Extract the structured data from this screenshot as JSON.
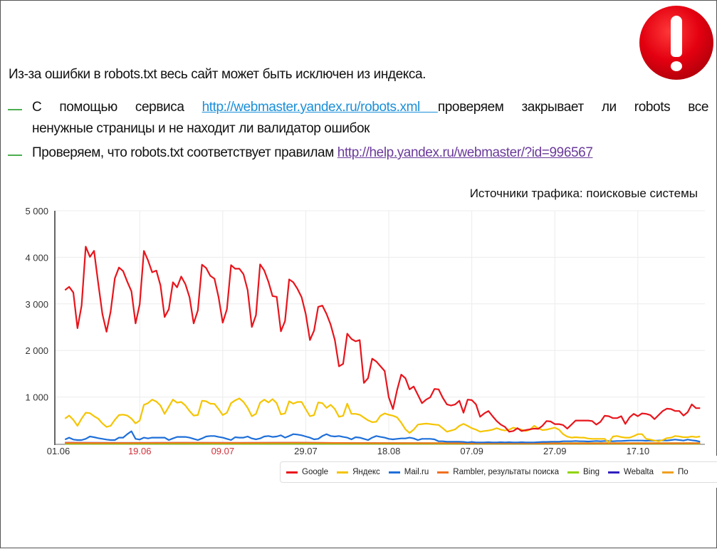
{
  "slide": {
    "headline": "Из-за ошибки в robots.txt весь сайт может быть исключен из индекса.",
    "bullet1": {
      "prefix": "С помощью сервиса",
      "link": "http://webmaster.yandex.ru/robots.xml ",
      "suffix_line1": "проверяем закрывает ли robots все",
      "line2": "ненужные страницы и не находит ли валидатор ошибок"
    },
    "bullet2": {
      "prefix": "Проверяем, что robots.txt соответствует правилам",
      "link": "http://help.yandex.ru/webmaster/?id=996567"
    },
    "warning_icon": "exclamation-circle-icon"
  },
  "chart_data": {
    "type": "line",
    "title": "Источники трафика: поисковые системы",
    "xlabel": "",
    "ylabel": "",
    "ylim": [
      0,
      5000
    ],
    "y_ticks": [
      1000,
      2000,
      3000,
      4000,
      5000
    ],
    "y_tick_labels": [
      "1 000",
      "2 000",
      "3 000",
      "4 000",
      "5 000"
    ],
    "x_ticks": [
      {
        "label": "01.06",
        "color": "#333333"
      },
      {
        "label": "19.06",
        "color": "#d0303a"
      },
      {
        "label": "09.07",
        "color": "#d0303a"
      },
      {
        "label": "29.07",
        "color": "#333333"
      },
      {
        "label": "18.08",
        "color": "#333333"
      },
      {
        "label": "07.09",
        "color": "#333333"
      },
      {
        "label": "27.09",
        "color": "#333333"
      },
      {
        "label": "17.10",
        "color": "#333333"
      }
    ],
    "grid": true,
    "legend_position": "bottom",
    "x": [
      "01.06",
      "02.06",
      "03.06",
      "04.06",
      "05.06",
      "06.06",
      "07.06",
      "08.06",
      "09.06",
      "10.06",
      "11.06",
      "12.06",
      "13.06",
      "14.06",
      "15.06",
      "16.06",
      "17.06",
      "18.06",
      "19.06",
      "20.06",
      "21.06",
      "22.06",
      "23.06",
      "24.06",
      "25.06",
      "26.06",
      "27.06",
      "28.06",
      "29.06",
      "30.06",
      "01.07",
      "02.07",
      "03.07",
      "04.07",
      "05.07",
      "06.07",
      "07.07",
      "08.07",
      "09.07",
      "10.07",
      "11.07",
      "12.07",
      "13.07",
      "14.07",
      "15.07",
      "16.07",
      "17.07",
      "18.07",
      "19.07",
      "20.07",
      "21.07",
      "22.07",
      "23.07",
      "24.07",
      "25.07",
      "26.07",
      "27.07",
      "28.07",
      "29.07",
      "30.07",
      "31.07",
      "01.08",
      "02.08",
      "03.08",
      "04.08",
      "05.08",
      "06.08",
      "07.08",
      "08.08",
      "09.08",
      "10.08",
      "11.08",
      "12.08",
      "13.08",
      "14.08",
      "15.08",
      "16.08",
      "17.08",
      "18.08",
      "19.08",
      "20.08",
      "21.08",
      "22.08",
      "23.08",
      "24.08",
      "25.08",
      "26.08",
      "27.08",
      "28.08",
      "29.08",
      "30.08",
      "31.08",
      "01.09",
      "02.09",
      "03.09",
      "04.09",
      "05.09",
      "06.09",
      "07.09",
      "08.09",
      "09.09",
      "10.09",
      "11.09",
      "12.09",
      "13.09",
      "14.09",
      "15.09",
      "16.09",
      "17.09",
      "18.09",
      "19.09",
      "20.09",
      "21.09",
      "22.09",
      "23.09",
      "24.09",
      "25.09",
      "26.09",
      "27.09",
      "28.09",
      "29.09",
      "30.09",
      "01.10",
      "02.10",
      "03.10",
      "04.10",
      "05.10",
      "06.10",
      "07.10",
      "08.10",
      "09.10",
      "10.10",
      "11.10",
      "12.10",
      "13.10",
      "14.10",
      "15.10",
      "16.10",
      "17.10",
      "18.10",
      "19.10",
      "20.10",
      "21.10",
      "22.10",
      "23.10",
      "24.10",
      "25.10",
      "26.10",
      "27.10",
      "28.10",
      "29.10",
      "30.10",
      "31.10",
      "01.11"
    ],
    "series": [
      {
        "name": "Google",
        "color": "#e8141b",
        "values": [
          3296,
          3367,
          3245,
          2478,
          2964,
          4231,
          4011,
          4139,
          3449,
          2785,
          2402,
          2836,
          3551,
          3781,
          3705,
          3475,
          3270,
          2581,
          2989,
          4139,
          3935,
          3679,
          3715,
          3398,
          2719,
          2887,
          3465,
          3357,
          3587,
          3424,
          3143,
          2581,
          2862,
          3843,
          3771,
          3603,
          3541,
          3143,
          2596,
          2887,
          3833,
          3756,
          3756,
          3638,
          3296,
          2504,
          2759,
          3848,
          3720,
          3475,
          3168,
          3153,
          2412,
          2632,
          3526,
          3465,
          3322,
          3143,
          2785,
          2223,
          2427,
          2938,
          2964,
          2785,
          2555,
          2223,
          1661,
          1712,
          2361,
          2248,
          2197,
          2223,
          1303,
          1405,
          1824,
          1763,
          1661,
          1559,
          996,
          741,
          1150,
          1482,
          1405,
          1165,
          1226,
          1048,
          869,
          945,
          996,
          1175,
          1165,
          986,
          843,
          818,
          843,
          920,
          664,
          945,
          935,
          843,
          577,
          649,
          700,
          588,
          485,
          409,
          358,
          256,
          271,
          332,
          271,
          291,
          307,
          322,
          317,
          383,
          485,
          475,
          419,
          419,
          399,
          322,
          409,
          496,
          496,
          496,
          496,
          485,
          409,
          470,
          598,
          588,
          547,
          547,
          588,
          424,
          562,
          639,
          588,
          649,
          639,
          613,
          526,
          613,
          700,
          751,
          741,
          700,
          700,
          603,
          675,
          843,
          761,
          761
        ]
      },
      {
        "name": "Яндекс",
        "color": "#f5c400",
        "values": [
          537,
          603,
          511,
          383,
          537,
          664,
          654,
          588,
          537,
          434,
          358,
          383,
          511,
          613,
          623,
          603,
          537,
          434,
          496,
          833,
          869,
          945,
          904,
          818,
          639,
          792,
          945,
          879,
          894,
          818,
          700,
          603,
          613,
          920,
          910,
          858,
          853,
          741,
          613,
          664,
          869,
          930,
          971,
          894,
          767,
          588,
          639,
          879,
          945,
          884,
          956,
          869,
          629,
          649,
          910,
          858,
          894,
          894,
          741,
          588,
          613,
          884,
          869,
          767,
          833,
          741,
          577,
          598,
          858,
          639,
          639,
          620,
          560,
          500,
          460,
          470,
          600,
          649,
          620,
          600,
          562,
          450,
          307,
          230,
          300,
          409,
          420,
          430,
          420,
          409,
          400,
          330,
          256,
          280,
          307,
          380,
          424,
          380,
          332,
          300,
          256,
          270,
          281,
          300,
          332,
          300,
          281,
          300,
          342,
          320,
          300,
          271,
          300,
          383,
          330,
          291,
          300,
          322,
          342,
          300,
          204,
          150,
          128,
          138,
          130,
          128,
          110,
          102,
          102,
          102,
          102,
          26,
          153,
          164,
          140,
          128,
          128,
          160,
          204,
          204,
          102,
          87,
          66,
          51,
          77,
          118,
          128,
          164,
          153,
          138,
          138,
          153,
          140,
          153
        ]
      },
      {
        "name": "Mail.ru",
        "color": "#1e6fd9",
        "values": [
          87,
          128,
          87,
          77,
          77,
          102,
          153,
          138,
          118,
          102,
          87,
          77,
          77,
          128,
          128,
          204,
          266,
          102,
          87,
          128,
          112,
          128,
          128,
          128,
          128,
          77,
          112,
          143,
          143,
          143,
          128,
          102,
          77,
          112,
          153,
          164,
          164,
          143,
          128,
          102,
          77,
          138,
          128,
          128,
          153,
          112,
          92,
          112,
          153,
          164,
          143,
          153,
          179,
          128,
          164,
          204,
          194,
          179,
          153,
          128,
          92,
          102,
          164,
          204,
          164,
          153,
          164,
          143,
          128,
          92,
          138,
          128,
          102,
          77,
          128,
          164,
          143,
          128,
          102,
          92,
          102,
          112,
          112,
          128,
          112,
          77,
          102,
          102,
          102,
          92,
          51,
          51,
          41,
          41,
          41,
          41,
          36,
          26,
          36,
          26,
          26,
          26,
          31,
          26,
          26,
          31,
          26,
          31,
          26,
          26,
          31,
          26,
          26,
          26,
          31,
          36,
          36,
          41,
          41,
          41,
          51,
          51,
          51,
          56,
          51,
          51,
          46,
          51,
          56,
          51,
          56,
          56,
          51,
          56,
          56,
          61,
          66,
          66,
          66,
          66,
          61,
          66,
          61,
          66,
          71,
          66,
          77,
          87,
          77,
          66,
          87,
          72,
          61,
          41
        ]
      },
      {
        "name": "Rambler, результаты поиска",
        "color": "#f07020",
        "x": [
          "01.06",
          "15.06",
          "29.06",
          "13.07",
          "27.07",
          "10.08",
          "24.08",
          "07.09",
          "21.09",
          "05.10",
          "19.10",
          "01.11"
        ],
        "values": [
          15,
          12,
          18,
          15,
          20,
          12,
          10,
          8,
          5,
          6,
          8,
          8
        ]
      },
      {
        "name": "Bing",
        "color": "#8fd400",
        "x": [
          "01.06",
          "15.06",
          "29.06",
          "13.07",
          "27.07",
          "10.08",
          "24.08",
          "07.09",
          "21.09",
          "05.10",
          "19.10",
          "01.11"
        ],
        "values": [
          5,
          5,
          6,
          5,
          6,
          5,
          5,
          4,
          4,
          5,
          5,
          5
        ]
      },
      {
        "name": "Webalta",
        "color": "#3020c0",
        "x": [
          "01.06",
          "15.06",
          "29.06",
          "13.07",
          "27.07",
          "10.08",
          "24.08",
          "07.09",
          "21.09",
          "05.10",
          "19.10",
          "01.11"
        ],
        "values": [
          20,
          15,
          18,
          15,
          20,
          10,
          8,
          4,
          3,
          3,
          3,
          3
        ]
      },
      {
        "name": "По",
        "color": "#f0a020",
        "x": [
          "01.06",
          "15.06",
          "29.06",
          "13.07",
          "27.07",
          "10.08",
          "24.08",
          "07.09",
          "21.09",
          "05.10",
          "19.10",
          "01.11"
        ],
        "values": [
          3,
          3,
          3,
          3,
          3,
          3,
          3,
          3,
          3,
          3,
          3,
          3
        ]
      }
    ]
  }
}
